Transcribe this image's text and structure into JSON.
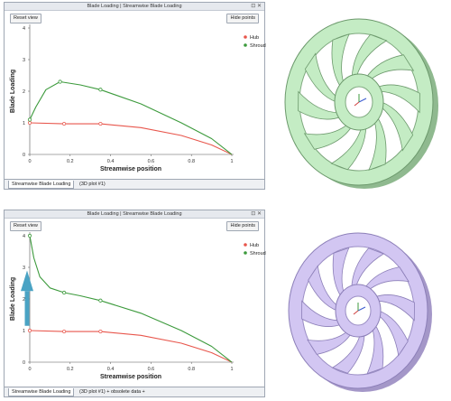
{
  "colors": {
    "hub": "#e8564c",
    "shroud": "#3c9a3c",
    "arrow": "#4aa3c4",
    "green_model": "#c4ecc4",
    "purple_model": "#d2c6f2"
  },
  "panels": [
    {
      "title": "Blade Loading | Streamwise Blade Loading",
      "reset_label": "Reset view",
      "hide_label": "Hide points",
      "tab_active": "Streamwise Blade Loading",
      "tab_second": "(3D plot #1)",
      "legend": [
        "Hub",
        "Shroud"
      ],
      "xlabel": "Streamwise position",
      "ylabel": "Blade Loading"
    },
    {
      "title": "Blade Loading | Streamwise Blade Loading",
      "reset_label": "Reset view",
      "hide_label": "Hide points",
      "tab_active": "Streamwise Blade Loading",
      "tab_second": "(3D plot #1) + obsolete data +",
      "legend": [
        "Hub",
        "Shroud"
      ],
      "xlabel": "Streamwise position",
      "ylabel": "Blade Loading"
    }
  ],
  "chart_data": [
    {
      "type": "line",
      "xlabel": "Streamwise position",
      "ylabel": "Blade Loading",
      "xlim": [
        0,
        1
      ],
      "ylim": [
        0,
        4
      ],
      "xticks": [
        "0",
        "0.2",
        "0.4",
        "0.6",
        "0.8",
        "1"
      ],
      "yticks": [
        "0",
        "1",
        "2",
        "3",
        "4"
      ],
      "legend_position": "top-right",
      "series": [
        {
          "name": "Hub",
          "x": [
            0,
            0.17,
            0.35,
            0.55,
            0.75,
            0.9,
            1.0
          ],
          "y": [
            1.0,
            0.97,
            0.97,
            0.85,
            0.6,
            0.3,
            0.0
          ],
          "markers": [
            0,
            1,
            2
          ]
        },
        {
          "name": "Shroud",
          "x": [
            0,
            0.03,
            0.08,
            0.15,
            0.25,
            0.35,
            0.55,
            0.75,
            0.9,
            1.0
          ],
          "y": [
            1.1,
            1.5,
            2.05,
            2.3,
            2.2,
            2.05,
            1.6,
            1.0,
            0.5,
            0.0
          ],
          "markers": [
            0,
            3,
            5
          ]
        }
      ]
    },
    {
      "type": "line",
      "xlabel": "Streamwise position",
      "ylabel": "Blade Loading",
      "xlim": [
        0,
        1
      ],
      "ylim": [
        0,
        4
      ],
      "xticks": [
        "0",
        "0.2",
        "0.4",
        "0.6",
        "0.8",
        "1"
      ],
      "yticks": [
        "0",
        "1",
        "2",
        "3",
        "4"
      ],
      "legend_position": "top-right",
      "series": [
        {
          "name": "Hub",
          "x": [
            0,
            0.17,
            0.35,
            0.55,
            0.75,
            0.9,
            1.0
          ],
          "y": [
            1.0,
            0.97,
            0.97,
            0.85,
            0.6,
            0.3,
            0.0
          ],
          "markers": [
            0,
            1,
            2
          ]
        },
        {
          "name": "Shroud",
          "x": [
            0,
            0.02,
            0.05,
            0.1,
            0.17,
            0.25,
            0.35,
            0.55,
            0.75,
            0.9,
            1.0
          ],
          "y": [
            4.0,
            3.3,
            2.7,
            2.35,
            2.2,
            2.1,
            1.95,
            1.55,
            1.0,
            0.5,
            0.0
          ],
          "markers": [
            0,
            4,
            6
          ]
        }
      ]
    }
  ]
}
